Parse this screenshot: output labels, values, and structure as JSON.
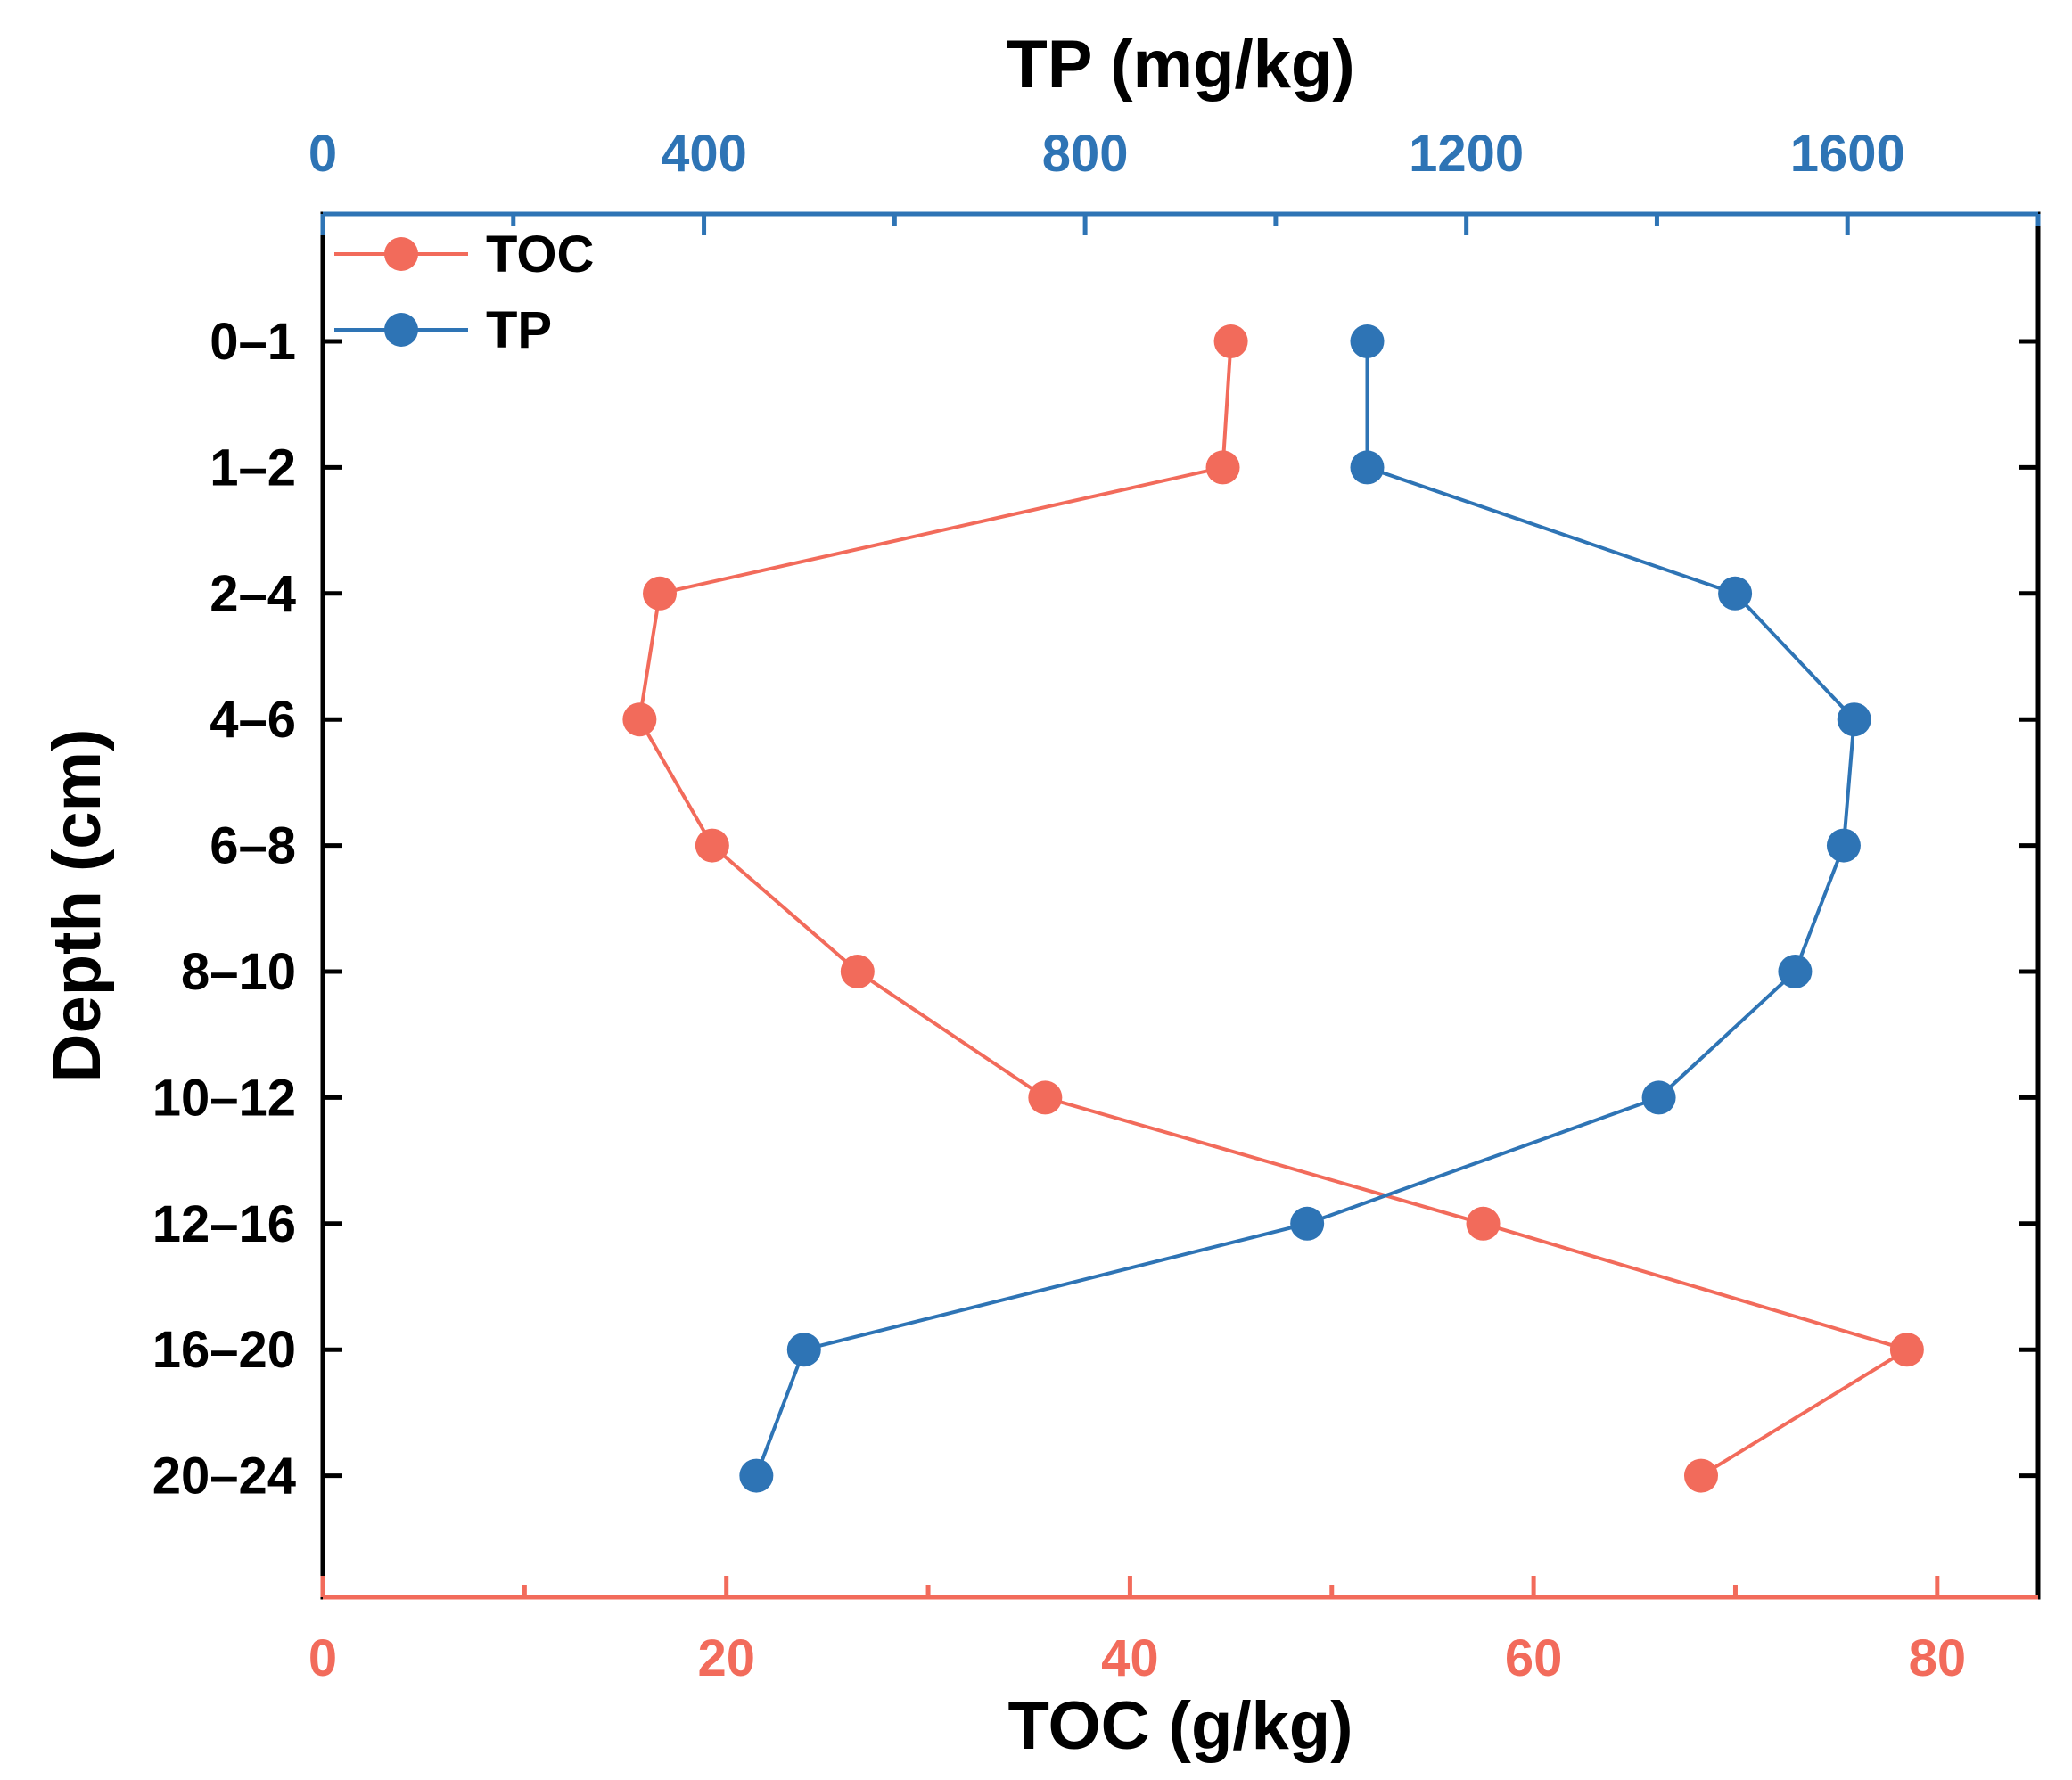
{
  "chart_data": {
    "type": "line",
    "y_axis": {
      "title": "Depth (cm)",
      "categories": [
        "0–1",
        "1–2",
        "2–4",
        "4–6",
        "6–8",
        "8–10",
        "10–12",
        "12–16",
        "16–20",
        "20–24"
      ]
    },
    "x_bottom": {
      "title": "TOC (g/kg)",
      "range": [
        0,
        85
      ],
      "ticks": [
        "0",
        "20",
        "40",
        "60",
        "80"
      ],
      "color": "#f26b5b"
    },
    "x_top": {
      "title": "TP (mg/kg)",
      "range": [
        0,
        1800
      ],
      "ticks": [
        "0",
        "400",
        "800",
        "1200",
        "1600"
      ],
      "color": "#2e74b5"
    },
    "series": [
      {
        "name": "TOC",
        "axis": "bottom",
        "color": "#f26b5b",
        "values": [
          45.0,
          44.6,
          16.7,
          15.7,
          19.3,
          26.5,
          35.8,
          57.5,
          78.5,
          68.3
        ]
      },
      {
        "name": "TP",
        "axis": "top",
        "color": "#2e74b5",
        "values": [
          1096,
          1096,
          1482,
          1607,
          1596,
          1545,
          1402,
          1033,
          505,
          455
        ]
      }
    ],
    "legend": {
      "position": "top-left",
      "entries": [
        "TOC",
        "TP"
      ]
    },
    "grid": false
  }
}
